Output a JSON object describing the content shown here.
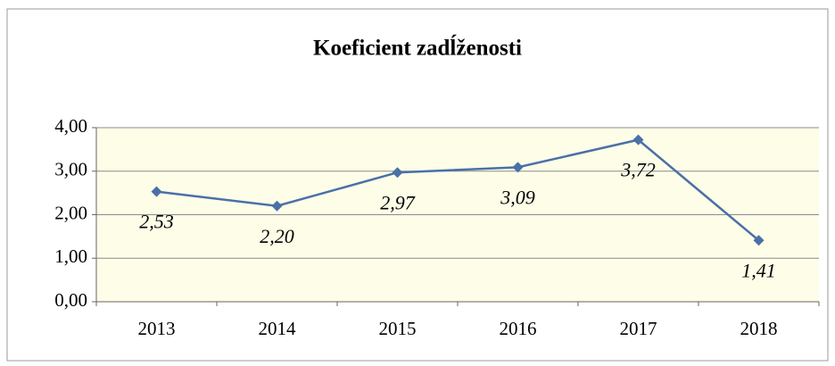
{
  "chart_data": {
    "type": "line",
    "title": "Koeficient zadĺženosti",
    "categories": [
      "2013",
      "2014",
      "2015",
      "2016",
      "2017",
      "2018"
    ],
    "values": [
      2.53,
      2.2,
      2.97,
      3.09,
      3.72,
      1.41
    ],
    "value_labels": [
      "2,53",
      "2,20",
      "2,97",
      "3,09",
      "3,72",
      "1,41"
    ],
    "color": "#4a70a8",
    "ylim": [
      0,
      4
    ],
    "yticks": [
      {
        "value": 0,
        "label": "0,00"
      },
      {
        "value": 1,
        "label": "1,00"
      },
      {
        "value": 2,
        "label": "2,00"
      },
      {
        "value": 3,
        "label": "3,00"
      },
      {
        "value": 4,
        "label": "4,00"
      }
    ],
    "grid": true
  }
}
